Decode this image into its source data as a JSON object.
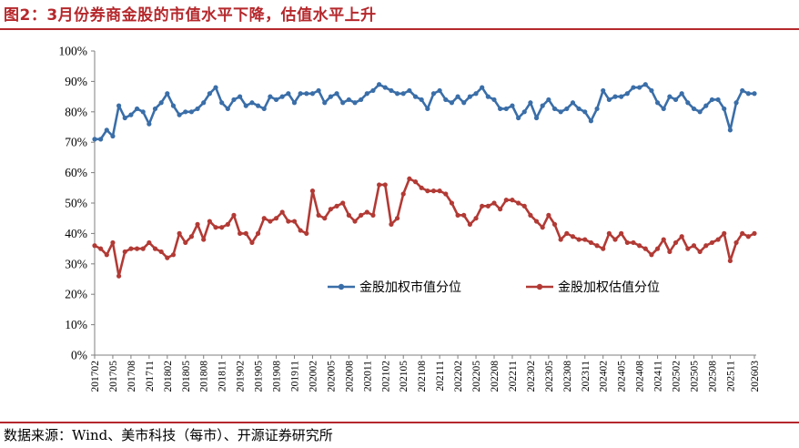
{
  "header": {
    "title": "图2：3月份券商金股的市值水平下降，估值水平上升"
  },
  "footer": {
    "source": "数据来源：Wind、美市科技（每市）、开源证券研究所"
  },
  "colors": {
    "title": "#b5282c",
    "series_blue": "#3a6ea8",
    "series_red": "#b23a35",
    "axis": "#7f7f7f"
  },
  "chart_data": {
    "type": "line",
    "title": "",
    "xlabel": "",
    "ylabel": "",
    "ylim": [
      0,
      100
    ],
    "y_ticks": [
      "0%",
      "10%",
      "20%",
      "30%",
      "40%",
      "50%",
      "60%",
      "70%",
      "80%",
      "90%",
      "100%"
    ],
    "legend_position": "center-right",
    "x_tick_labels": [
      "201702",
      "201705",
      "201708",
      "201711",
      "201802",
      "201805",
      "201808",
      "201811",
      "201902",
      "201905",
      "201908",
      "201911",
      "202002",
      "202005",
      "202008",
      "202011",
      "202102",
      "202105",
      "202108",
      "202111",
      "202202",
      "202205",
      "202208",
      "202211",
      "202302",
      "202305",
      "202308",
      "202311",
      "202402",
      "202405",
      "202408",
      "202411",
      "202502",
      "202505",
      "202508",
      "202511",
      "202603"
    ],
    "x": [
      "201702",
      "201703",
      "201704",
      "201705",
      "201706",
      "201707",
      "201708",
      "201709",
      "201710",
      "201711",
      "201712",
      "201801",
      "201802",
      "201803",
      "201804",
      "201805",
      "201806",
      "201807",
      "201808",
      "201809",
      "201810",
      "201811",
      "201812",
      "201901",
      "201902",
      "201903",
      "201904",
      "201905",
      "201906",
      "201907",
      "201908",
      "201909",
      "201910",
      "201911",
      "201912",
      "202001",
      "202002",
      "202003",
      "202004",
      "202005",
      "202006",
      "202007",
      "202008",
      "202009",
      "202010",
      "202011",
      "202012",
      "202101",
      "202102",
      "202103",
      "202104",
      "202105",
      "202106",
      "202107",
      "202108",
      "202109",
      "202110",
      "202111",
      "202112",
      "202201",
      "202202",
      "202203",
      "202204",
      "202205",
      "202206",
      "202207",
      "202208",
      "202209",
      "202210",
      "202211",
      "202212",
      "202301",
      "202302",
      "202303",
      "202304",
      "202305",
      "202306",
      "202307",
      "202308",
      "202309",
      "202310",
      "202311",
      "202312",
      "202401",
      "202402",
      "202403",
      "202404",
      "202405",
      "202406",
      "202407",
      "202408",
      "202409",
      "202410",
      "202411",
      "202412",
      "202501",
      "202502",
      "202503",
      "202504",
      "202505",
      "202506",
      "202507",
      "202508",
      "202509",
      "202510",
      "202511",
      "202512",
      "202601",
      "202602",
      "202603"
    ],
    "series": [
      {
        "name": "金股加权市值分位",
        "color": "#3a6ea8",
        "values": [
          71,
          71,
          74,
          72,
          82,
          78,
          79,
          81,
          80,
          76,
          81,
          83,
          86,
          82,
          79,
          80,
          80,
          81,
          83,
          86,
          88,
          83,
          81,
          84,
          85,
          82,
          83,
          82,
          81,
          85,
          84,
          85,
          86,
          83,
          86,
          86,
          86,
          87,
          83,
          85,
          86,
          83,
          84,
          83,
          84,
          86,
          87,
          89,
          88,
          87,
          86,
          86,
          87,
          85,
          84,
          81,
          86,
          87,
          84,
          83,
          85,
          83,
          85,
          86,
          88,
          85,
          84,
          81,
          81,
          82,
          78,
          80,
          83,
          78,
          82,
          84,
          81,
          80,
          81,
          83,
          81,
          80,
          77,
          81,
          87,
          84,
          85,
          85,
          86,
          88,
          88,
          89,
          87,
          83,
          81,
          85,
          84,
          86,
          83,
          81,
          80,
          82,
          84,
          84,
          81,
          74,
          83,
          87,
          86,
          86
        ]
      },
      {
        "name": "金股加权估值分位",
        "color": "#b23a35",
        "values": [
          36,
          35,
          33,
          37,
          26,
          34,
          35,
          35,
          35,
          37,
          35,
          34,
          32,
          33,
          40,
          37,
          39,
          43,
          38,
          44,
          42,
          42,
          43,
          46,
          40,
          40,
          37,
          40,
          45,
          44,
          45,
          47,
          44,
          44,
          41,
          40,
          54,
          46,
          45,
          48,
          49,
          50,
          46,
          44,
          46,
          47,
          46,
          56,
          56,
          43,
          45,
          53,
          58,
          57,
          55,
          54,
          54,
          54,
          53,
          50,
          46,
          46,
          43,
          45,
          49,
          49,
          50,
          48,
          51,
          51,
          50,
          49,
          46,
          44,
          42,
          46,
          43,
          38,
          40,
          39,
          38,
          38,
          37,
          36,
          35,
          40,
          38,
          40,
          37,
          37,
          36,
          35,
          33,
          35,
          38,
          34,
          37,
          39,
          35,
          36,
          34,
          36,
          37,
          38,
          40,
          31,
          37,
          40,
          39,
          40
        ]
      }
    ]
  }
}
